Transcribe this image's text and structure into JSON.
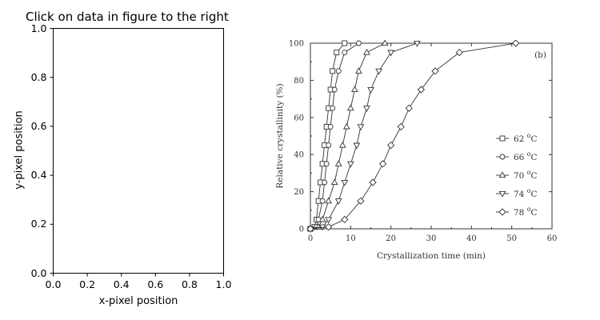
{
  "instruction": "Click on data in figure to the right",
  "left_plot": {
    "xlabel": "x-pixel position",
    "ylabel": "y-pixel position",
    "xticks": [
      "0.0",
      "0.2",
      "0.4",
      "0.6",
      "0.8",
      "1.0"
    ],
    "yticks": [
      "0.0",
      "0.2",
      "0.4",
      "0.6",
      "0.8",
      "1.0"
    ]
  },
  "chart_data": {
    "type": "line",
    "panel_label": "(b)",
    "xlabel": "Crystallization time (min)",
    "ylabel": "Relative crystallinity (%)",
    "xlim": [
      0,
      60
    ],
    "ylim": [
      0,
      100
    ],
    "xticks": [
      "0",
      "10",
      "20",
      "30",
      "40",
      "50",
      "60"
    ],
    "yticks": [
      "0",
      "20",
      "40",
      "60",
      "80",
      "100"
    ],
    "legend_position": "right",
    "series": [
      {
        "name": "62 °C",
        "marker": "square",
        "x": [
          0,
          1,
          1.5,
          2,
          2.5,
          3,
          3.5,
          4,
          4.5,
          5,
          5.5,
          6.5,
          8.5
        ],
        "y": [
          0,
          1,
          5,
          15,
          25,
          35,
          45,
          55,
          65,
          75,
          85,
          95,
          100
        ]
      },
      {
        "name": "66 °C",
        "marker": "circle",
        "x": [
          0,
          1.5,
          2,
          3,
          3.5,
          4,
          4.5,
          5,
          5.5,
          6,
          7,
          8.5,
          12
        ],
        "y": [
          0,
          1,
          5,
          15,
          25,
          35,
          45,
          55,
          65,
          75,
          85,
          95,
          100
        ]
      },
      {
        "name": "70 °C",
        "marker": "triangle-up",
        "x": [
          0,
          2,
          3,
          4.5,
          6,
          7,
          8,
          9,
          10,
          11,
          12,
          14,
          18.5
        ],
        "y": [
          0,
          1,
          5,
          15,
          25,
          35,
          45,
          55,
          65,
          75,
          85,
          95,
          100
        ]
      },
      {
        "name": "74 °C",
        "marker": "triangle-down",
        "x": [
          0,
          3,
          4.5,
          7,
          8.5,
          10,
          11.5,
          12.5,
          14,
          15,
          17,
          20,
          26.5
        ],
        "y": [
          0,
          1,
          5,
          15,
          25,
          35,
          45,
          55,
          65,
          75,
          85,
          95,
          100
        ]
      },
      {
        "name": "78 °C",
        "marker": "diamond",
        "x": [
          0,
          4.5,
          8.5,
          12.5,
          15.5,
          18,
          20,
          22.5,
          24.5,
          27.5,
          31,
          37,
          51
        ],
        "y": [
          0,
          1,
          5,
          15,
          25,
          35,
          45,
          55,
          65,
          75,
          85,
          95,
          100
        ]
      }
    ],
    "legend_labels": [
      {
        "prefix": "62 ",
        "sup": "o",
        "suffix": "C"
      },
      {
        "prefix": "66 ",
        "sup": "o",
        "suffix": "C"
      },
      {
        "prefix": "70 ",
        "sup": "o",
        "suffix": "C"
      },
      {
        "prefix": "74 ",
        "sup": "o",
        "suffix": "C"
      },
      {
        "prefix": "78 ",
        "sup": "o",
        "suffix": "C"
      }
    ]
  }
}
